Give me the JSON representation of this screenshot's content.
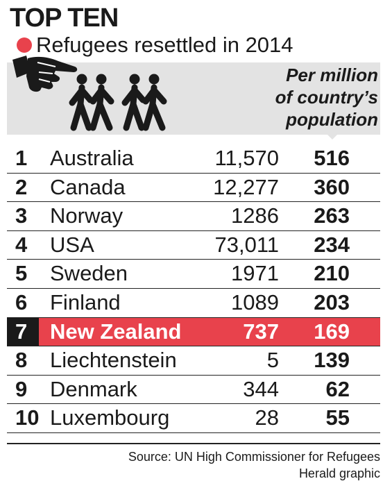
{
  "header": {
    "title": "TOP TEN",
    "subtitle": "Refugees resettled in 2014",
    "column_label_lines": [
      "Per million",
      "of country’s",
      "population"
    ],
    "icons": [
      "pointing-hand-icon",
      "walking-people-icon"
    ]
  },
  "colors": {
    "accent": "#e8424c",
    "band": "#e3e3e3",
    "text": "#1a1a1a"
  },
  "chart_data": {
    "type": "table",
    "title": "TOP TEN",
    "subtitle": "Refugees resettled in 2014",
    "columns": [
      "",
      "",
      "",
      "Per million of country’s population"
    ],
    "highlight_rank": "7",
    "rows": [
      {
        "rank": "1",
        "country": "Australia",
        "resettled": "11,570",
        "per_million": "516"
      },
      {
        "rank": "2",
        "country": "Canada",
        "resettled": "12,277",
        "per_million": "360"
      },
      {
        "rank": "3",
        "country": "Norway",
        "resettled": "1286",
        "per_million": "263"
      },
      {
        "rank": "4",
        "country": "USA",
        "resettled": "73,011",
        "per_million": "234"
      },
      {
        "rank": "5",
        "country": "Sweden",
        "resettled": "1971",
        "per_million": "210"
      },
      {
        "rank": "6",
        "country": "Finland",
        "resettled": "1089",
        "per_million": "203"
      },
      {
        "rank": "7",
        "country": "New Zealand",
        "resettled": "737",
        "per_million": "169"
      },
      {
        "rank": "8",
        "country": "Liechtenstein",
        "resettled": "5",
        "per_million": "139"
      },
      {
        "rank": "9",
        "country": "Denmark",
        "resettled": "344",
        "per_million": "62"
      },
      {
        "rank": "10",
        "country": "Luxembourg",
        "resettled": "28",
        "per_million": "55"
      }
    ]
  },
  "footer": {
    "source": "Source: UN High Commissioner for Refugees",
    "credit": "Herald graphic"
  }
}
